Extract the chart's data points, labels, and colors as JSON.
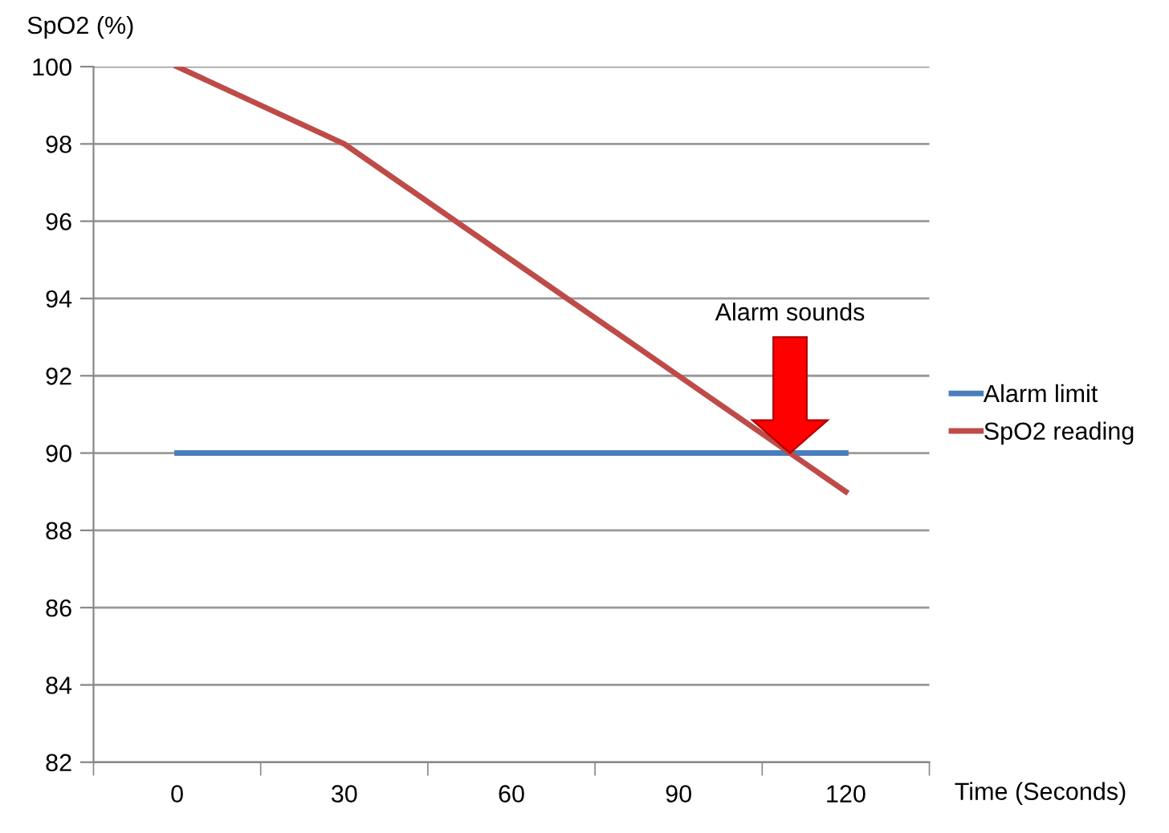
{
  "chart_data": {
    "type": "line",
    "ylabel": "SpO2 (%)",
    "xlabel": "Time (Seconds)",
    "categories": [
      "0",
      "30",
      "60",
      "90",
      "120"
    ],
    "series": [
      {
        "name": "Alarm limit",
        "color": "#4a7ebb",
        "values": [
          90,
          90,
          90,
          90,
          90
        ]
      },
      {
        "name": "SpO2 reading",
        "color": "#be4b48",
        "values": [
          100,
          98,
          95,
          92,
          89
        ]
      }
    ],
    "ylim": [
      82,
      100
    ],
    "yticks": [
      82,
      84,
      86,
      88,
      90,
      92,
      94,
      96,
      98,
      100
    ],
    "grid": "y",
    "legend": "right",
    "marker": "none",
    "line_style": "solid",
    "annotations": [
      "Alarm sounds"
    ]
  }
}
